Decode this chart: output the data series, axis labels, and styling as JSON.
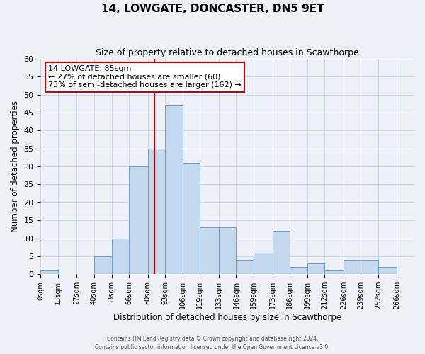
{
  "title": "14, LOWGATE, DONCASTER, DN5 9ET",
  "subtitle": "Size of property relative to detached houses in Scawthorpe",
  "xlabel": "Distribution of detached houses by size in Scawthorpe",
  "ylabel": "Number of detached properties",
  "bin_labels": [
    "0sqm",
    "13sqm",
    "27sqm",
    "40sqm",
    "53sqm",
    "66sqm",
    "80sqm",
    "93sqm",
    "106sqm",
    "119sqm",
    "133sqm",
    "146sqm",
    "159sqm",
    "173sqm",
    "186sqm",
    "199sqm",
    "212sqm",
    "226sqm",
    "239sqm",
    "252sqm",
    "266sqm"
  ],
  "bin_edges": [
    0,
    13,
    27,
    40,
    53,
    66,
    80,
    93,
    106,
    119,
    133,
    146,
    159,
    173,
    186,
    199,
    212,
    226,
    239,
    252,
    266,
    279
  ],
  "counts": [
    1,
    0,
    0,
    5,
    10,
    30,
    35,
    47,
    31,
    13,
    13,
    4,
    6,
    12,
    2,
    3,
    1,
    4,
    4,
    2,
    0
  ],
  "bar_facecolor": "#c5d9ee",
  "bar_edgecolor": "#6b9ec8",
  "vline_x": 85,
  "vline_color": "#cc0000",
  "annotation_line1": "14 LOWGATE: 85sqm",
  "annotation_line2": "← 27% of detached houses are smaller (60)",
  "annotation_line3": "73% of semi-detached houses are larger (162) →",
  "annotation_box_edgecolor": "#cc0000",
  "ylim": [
    0,
    60
  ],
  "yticks": [
    0,
    5,
    10,
    15,
    20,
    25,
    30,
    35,
    40,
    45,
    50,
    55,
    60
  ],
  "grid_color": "#d0d8e8",
  "bg_color": "#eef2f8",
  "footer_line1": "Contains HM Land Registry data © Crown copyright and database right 2024.",
  "footer_line2": "Contains public sector information licensed under the Open Government Licence v3.0."
}
